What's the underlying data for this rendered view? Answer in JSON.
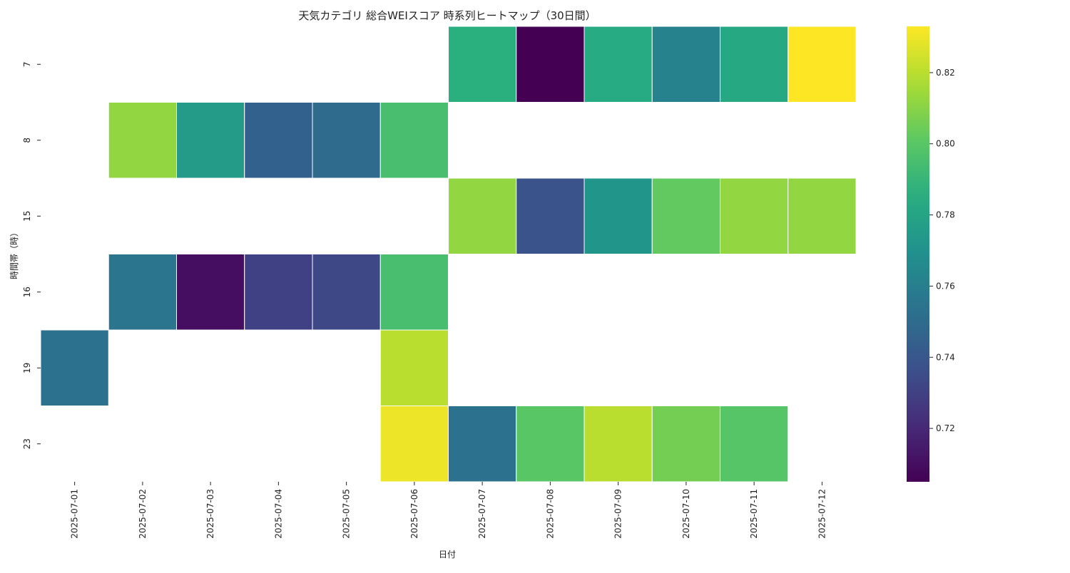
{
  "chart_data": {
    "type": "heatmap",
    "title": "天気カテゴリ 総合WEIスコア 時系列ヒートマップ（30日間）",
    "xlabel": "日付",
    "ylabel": "時間帯（時）",
    "x_categories": [
      "2025-07-01",
      "2025-07-02",
      "2025-07-03",
      "2025-07-04",
      "2025-07-05",
      "2025-07-06",
      "2025-07-07",
      "2025-07-08",
      "2025-07-09",
      "2025-07-10",
      "2025-07-11",
      "2025-07-12"
    ],
    "y_categories": [
      "7",
      "8",
      "15",
      "16",
      "19",
      "23"
    ],
    "values": [
      [
        null,
        null,
        null,
        null,
        null,
        null,
        0.786,
        0.705,
        0.784,
        0.762,
        0.783,
        0.833
      ],
      [
        null,
        0.812,
        0.775,
        0.745,
        0.75,
        0.795,
        null,
        null,
        null,
        null,
        null,
        null
      ],
      [
        null,
        null,
        null,
        null,
        null,
        null,
        0.812,
        0.738,
        0.772,
        0.802,
        0.812,
        0.812
      ],
      [
        null,
        0.755,
        0.71,
        0.73,
        0.733,
        0.795,
        null,
        null,
        null,
        null,
        null,
        null
      ],
      [
        0.753,
        null,
        null,
        null,
        null,
        0.82,
        null,
        null,
        null,
        null,
        null,
        null
      ],
      [
        null,
        null,
        null,
        null,
        null,
        0.83,
        0.753,
        0.8,
        0.82,
        0.806,
        0.799,
        null
      ]
    ],
    "colorscale": "viridis",
    "vmin": 0.705,
    "vmax": 0.833,
    "colorbar_ticks": [
      0.72,
      0.74,
      0.76,
      0.78,
      0.8,
      0.82
    ],
    "colorbar_tick_labels": [
      "0.72",
      "0.74",
      "0.76",
      "0.78",
      "0.80",
      "0.82"
    ]
  }
}
